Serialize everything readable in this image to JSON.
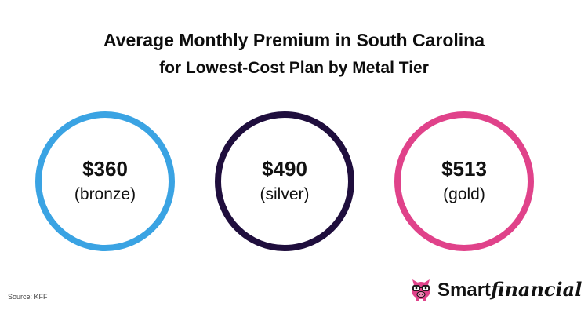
{
  "title": {
    "line1": "Average Monthly Premium in South Carolina",
    "line2": "for Lowest-Cost Plan by Metal Tier"
  },
  "tiers": [
    {
      "price": "$360",
      "label": "(bronze)",
      "color": "#3aa3e3"
    },
    {
      "price": "$490",
      "label": "(silver)",
      "color": "#1f0e3d"
    },
    {
      "price": "$513",
      "label": "(gold)",
      "color": "#e0428a"
    }
  ],
  "source": "Source: KFF",
  "logo": {
    "part1": "Smart",
    "part2": "financial",
    "icon": "piggy-bank-with-glasses-icon",
    "icon_color": "#e0428a"
  }
}
